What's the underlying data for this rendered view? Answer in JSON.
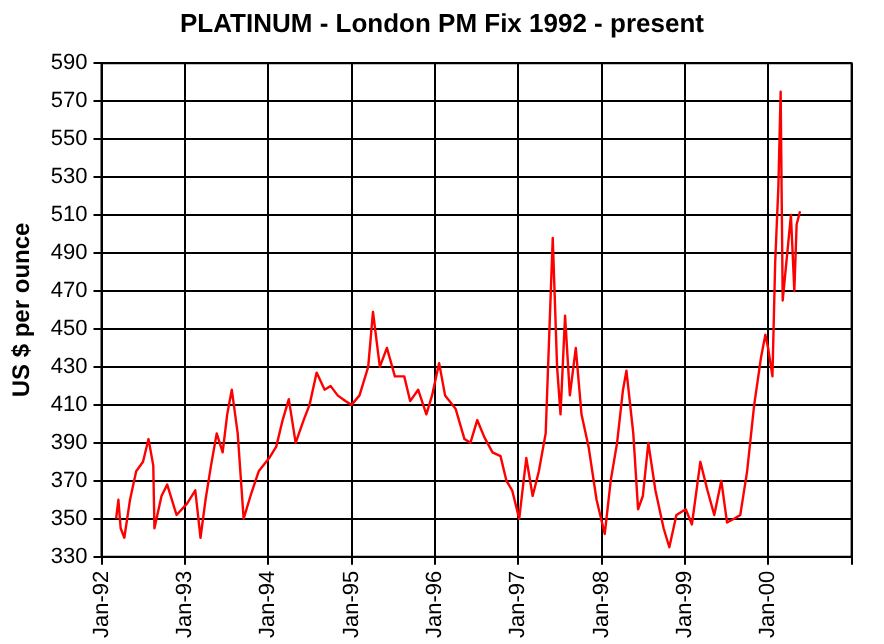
{
  "chart_data": {
    "type": "line",
    "title": "PLATINUM - London PM Fix 1992 - present",
    "ylabel": "US $ per ounce",
    "xlim": [
      "1992-01-01",
      "2001-01-01"
    ],
    "xticks": [
      {
        "value": "1992-01",
        "label": "Jan-92"
      },
      {
        "value": "1993-01",
        "label": "Jan-93"
      },
      {
        "value": "1994-01",
        "label": "Jan-94"
      },
      {
        "value": "1995-01",
        "label": "Jan-95"
      },
      {
        "value": "1996-01",
        "label": "Jan-96"
      },
      {
        "value": "1997-01",
        "label": "Jan-97"
      },
      {
        "value": "1998-01",
        "label": "Jan-98"
      },
      {
        "value": "1999-01",
        "label": "Jan-99"
      },
      {
        "value": "2000-01",
        "label": "Jan-00"
      },
      {
        "value": "2001-01",
        "label": null
      }
    ],
    "ylim": [
      330,
      590
    ],
    "yticks": [
      330,
      350,
      370,
      390,
      410,
      430,
      450,
      470,
      490,
      510,
      530,
      550,
      570,
      590
    ],
    "grid": true,
    "marker": "none",
    "line_style": "solid",
    "series": [
      {
        "color": "#ff0000",
        "x": [
          "1992-03-05",
          "1992-03-15",
          "1992-03-25",
          "1992-04-10",
          "1992-05-05",
          "1992-06-01",
          "1992-07-01",
          "1992-07-25",
          "1992-08-15",
          "1992-08-20",
          "1992-09-20",
          "1992-10-15",
          "1992-11-25",
          "1993-01-10",
          "1993-02-15",
          "1993-03-10",
          "1993-04-01",
          "1993-04-25",
          "1993-05-20",
          "1993-06-15",
          "1993-07-05",
          "1993-07-25",
          "1993-08-20",
          "1993-09-15",
          "1993-10-15",
          "1993-11-20",
          "1994-01-05",
          "1994-02-05",
          "1994-03-05",
          "1994-04-01",
          "1994-05-01",
          "1994-06-05",
          "1994-07-01",
          "1994-08-01",
          "1994-09-05",
          "1994-10-01",
          "1994-11-01",
          "1994-12-05",
          "1995-01-01",
          "1995-02-05",
          "1995-03-15",
          "1995-04-05",
          "1995-05-05",
          "1995-06-05",
          "1995-07-10",
          "1995-08-20",
          "1995-09-15",
          "1995-10-20",
          "1995-11-25",
          "1995-12-20",
          "1996-01-20",
          "1996-02-15",
          "1996-04-01",
          "1996-05-10",
          "1996-06-05",
          "1996-07-05",
          "1996-08-05",
          "1996-09-10",
          "1996-10-15",
          "1996-11-10",
          "1996-12-05",
          "1997-01-05",
          "1997-02-05",
          "1997-03-05",
          "1997-04-01",
          "1997-05-01",
          "1997-06-01",
          "1997-06-20",
          "1997-07-05",
          "1997-07-25",
          "1997-08-15",
          "1997-09-10",
          "1997-10-05",
          "1997-11-05",
          "1997-12-10",
          "1998-01-15",
          "1998-02-10",
          "1998-03-10",
          "1998-04-05",
          "1998-04-20",
          "1998-05-20",
          "1998-06-10",
          "1998-07-01",
          "1998-07-25",
          "1998-08-25",
          "1998-09-30",
          "1998-10-25",
          "1998-11-25",
          "1999-01-05",
          "1999-02-01",
          "1999-03-10",
          "1999-04-10",
          "1999-05-10",
          "1999-06-10",
          "1999-07-05",
          "1999-08-05",
          "1999-09-01",
          "1999-10-01",
          "1999-11-01",
          "1999-12-01",
          "1999-12-20",
          "2000-01-01",
          "2000-01-20",
          "2000-02-01",
          "2000-02-15",
          "2000-02-25",
          "2000-03-05",
          "2000-03-25",
          "2000-04-10",
          "2000-04-25",
          "2000-05-05",
          "2000-05-20"
        ],
        "values": [
          350,
          360,
          345,
          340,
          360,
          375,
          380,
          392,
          378,
          345,
          362,
          368,
          352,
          358,
          365,
          340,
          360,
          378,
          395,
          385,
          405,
          418,
          395,
          350,
          362,
          375,
          382,
          388,
          402,
          413,
          390,
          402,
          410,
          427,
          418,
          420,
          415,
          412,
          410,
          415,
          430,
          459,
          430,
          440,
          425,
          425,
          412,
          418,
          405,
          415,
          432,
          415,
          408,
          392,
          390,
          402,
          393,
          385,
          383,
          370,
          365,
          350,
          382,
          362,
          375,
          395,
          498,
          430,
          405,
          457,
          415,
          440,
          405,
          388,
          360,
          342,
          370,
          390,
          418,
          428,
          395,
          355,
          362,
          390,
          365,
          345,
          335,
          352,
          355,
          347,
          380,
          365,
          352,
          370,
          348,
          350,
          352,
          375,
          410,
          435,
          447,
          440,
          425,
          485,
          525,
          575,
          465,
          490,
          510,
          470,
          505,
          512
        ]
      }
    ]
  }
}
